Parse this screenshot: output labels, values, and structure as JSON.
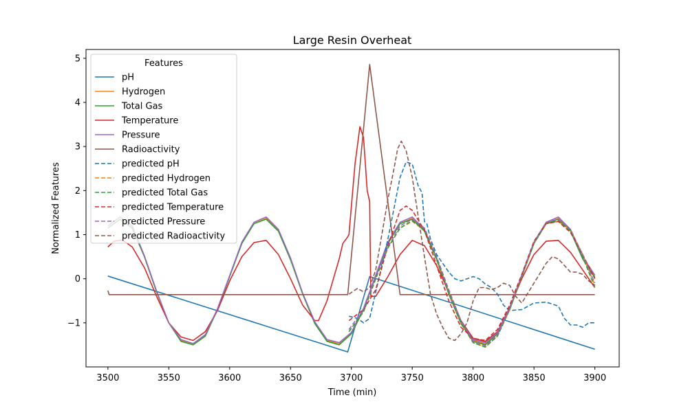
{
  "chart_data": {
    "type": "line",
    "title": "Large Resin Overheat",
    "xlabel": "Time (min)",
    "ylabel": "Normalized Features",
    "xlim": [
      3482,
      3920
    ],
    "ylim": [
      -2.0,
      5.2
    ],
    "x_ticks": [
      3500,
      3550,
      3600,
      3650,
      3700,
      3750,
      3800,
      3850,
      3900
    ],
    "y_ticks": [
      -1,
      0,
      1,
      2,
      3,
      4,
      5
    ],
    "x_tick_labels": [
      "3500",
      "3550",
      "3600",
      "3650",
      "3700",
      "3750",
      "3800",
      "3850",
      "3900"
    ],
    "y_tick_labels": [
      "−1",
      "0",
      "1",
      "2",
      "3",
      "4",
      "5"
    ],
    "grid": false,
    "legend": {
      "title": "Features",
      "position": "top-left"
    },
    "series": [
      {
        "name": "pH",
        "color": "#1f77b4",
        "dashed": false,
        "x": [
          3500,
          3697,
          3715,
          3900
        ],
        "y": [
          0.06,
          -1.66,
          0.05,
          -1.6
        ]
      },
      {
        "name": "Hydrogen",
        "color": "#ff7f0e",
        "dashed": false,
        "x": [
          3500,
          3510,
          3520,
          3530,
          3540,
          3550,
          3560,
          3570,
          3580,
          3590,
          3600,
          3610,
          3620,
          3630,
          3640,
          3650,
          3660,
          3670,
          3680,
          3690,
          3700,
          3710,
          3720,
          3730,
          3740,
          3750,
          3760,
          3770,
          3780,
          3790,
          3800,
          3810,
          3820,
          3830,
          3840,
          3850,
          3860,
          3870,
          3880,
          3890,
          3900
        ],
        "y": [
          1.15,
          1.35,
          1.15,
          0.5,
          -0.3,
          -1.0,
          -1.4,
          -1.5,
          -1.3,
          -0.7,
          0.05,
          0.8,
          1.25,
          1.37,
          1.1,
          0.45,
          -0.35,
          -1.0,
          -1.4,
          -1.48,
          -1.25,
          -0.7,
          0.05,
          0.8,
          1.25,
          1.37,
          1.1,
          0.45,
          -0.35,
          -1.0,
          -1.4,
          -1.48,
          -1.25,
          -0.7,
          0.05,
          0.8,
          1.25,
          1.37,
          1.1,
          0.5,
          0.05
        ]
      },
      {
        "name": "Total Gas",
        "color": "#2ca02c",
        "dashed": false,
        "x": [
          3500,
          3510,
          3520,
          3530,
          3540,
          3550,
          3560,
          3570,
          3580,
          3590,
          3600,
          3610,
          3620,
          3630,
          3640,
          3650,
          3660,
          3670,
          3680,
          3690,
          3700,
          3710,
          3720,
          3730,
          3740,
          3750,
          3760,
          3770,
          3780,
          3790,
          3800,
          3810,
          3820,
          3830,
          3840,
          3850,
          3860,
          3870,
          3880,
          3890,
          3900
        ],
        "y": [
          1.15,
          1.35,
          1.15,
          0.5,
          -0.3,
          -1.0,
          -1.42,
          -1.5,
          -1.3,
          -0.7,
          0.05,
          0.8,
          1.25,
          1.35,
          1.08,
          0.43,
          -0.35,
          -1.02,
          -1.42,
          -1.5,
          -1.25,
          -0.7,
          0.05,
          0.8,
          1.25,
          1.35,
          1.08,
          0.43,
          -0.35,
          -1.02,
          -1.42,
          -1.5,
          -1.25,
          -0.7,
          0.05,
          0.8,
          1.25,
          1.35,
          1.08,
          0.45,
          0.02
        ]
      },
      {
        "name": "Temperature",
        "color": "#d62728",
        "dashed": false,
        "x": [
          3500,
          3505,
          3512,
          3520,
          3530,
          3540,
          3550,
          3560,
          3570,
          3580,
          3590,
          3600,
          3610,
          3620,
          3630,
          3640,
          3650,
          3660,
          3670,
          3673,
          3680,
          3690,
          3693,
          3697,
          3698,
          3703,
          3707,
          3710,
          3713,
          3715,
          3716,
          3720,
          3730,
          3740,
          3750,
          3760,
          3770,
          3780,
          3790,
          3800,
          3810,
          3820,
          3830,
          3840,
          3850,
          3860,
          3870,
          3880,
          3890,
          3900
        ],
        "y": [
          0.72,
          0.85,
          0.88,
          0.72,
          0.25,
          -0.4,
          -1.0,
          -1.32,
          -1.4,
          -1.2,
          -0.72,
          -0.05,
          0.5,
          0.82,
          0.87,
          0.55,
          0.0,
          -0.6,
          -0.95,
          -0.95,
          -0.5,
          0.45,
          0.8,
          0.95,
          1.0,
          2.6,
          3.45,
          3.2,
          2.0,
          1.75,
          -0.4,
          -0.4,
          0.05,
          0.55,
          0.87,
          0.75,
          0.3,
          -0.3,
          -0.95,
          -1.35,
          -1.42,
          -1.2,
          -0.65,
          0.0,
          0.55,
          0.85,
          0.87,
          0.6,
          0.2,
          -0.2
        ]
      },
      {
        "name": "Pressure",
        "color": "#9467bd",
        "dashed": false,
        "x": [
          3500,
          3510,
          3520,
          3530,
          3540,
          3550,
          3560,
          3570,
          3580,
          3590,
          3600,
          3610,
          3620,
          3630,
          3640,
          3650,
          3660,
          3670,
          3680,
          3690,
          3700,
          3710,
          3720,
          3730,
          3740,
          3750,
          3760,
          3770,
          3780,
          3790,
          3800,
          3810,
          3820,
          3830,
          3840,
          3850,
          3860,
          3870,
          3880,
          3890,
          3900
        ],
        "y": [
          1.2,
          1.4,
          1.2,
          0.52,
          -0.28,
          -1.0,
          -1.38,
          -1.47,
          -1.27,
          -0.68,
          0.07,
          0.83,
          1.28,
          1.4,
          1.12,
          0.47,
          -0.33,
          -0.98,
          -1.38,
          -1.45,
          -1.22,
          -0.67,
          0.08,
          0.83,
          1.28,
          1.4,
          1.12,
          0.47,
          -0.33,
          -0.98,
          -1.38,
          -1.45,
          -1.22,
          -0.67,
          0.08,
          0.83,
          1.28,
          1.4,
          1.12,
          0.5,
          0.08
        ]
      },
      {
        "name": "Radioactivity",
        "color": "#8c564b",
        "dashed": false,
        "x": [
          3500,
          3501,
          3697,
          3715,
          3740,
          3900
        ],
        "y": [
          -0.27,
          -0.36,
          -0.36,
          4.86,
          -0.36,
          -0.36
        ]
      },
      {
        "name": "predicted pH",
        "color": "#1f77b4",
        "dashed": true,
        "x": [
          3698,
          3705,
          3710,
          3715,
          3720,
          3725,
          3730,
          3735,
          3740,
          3745,
          3750,
          3755,
          3758,
          3760,
          3762,
          3765,
          3770,
          3775,
          3780,
          3785,
          3790,
          3795,
          3800,
          3805,
          3810,
          3815,
          3820,
          3825,
          3830,
          3840,
          3850,
          3860,
          3870,
          3875,
          3880,
          3885,
          3890,
          3895,
          3900
        ],
        "y": [
          -0.85,
          -0.9,
          -1.0,
          -0.9,
          -0.3,
          0.3,
          0.9,
          1.6,
          2.3,
          2.65,
          2.6,
          2.1,
          1.95,
          1.3,
          1.25,
          0.9,
          0.55,
          0.35,
          0.15,
          0.0,
          -0.05,
          0.0,
          0.05,
          0.0,
          -0.12,
          -0.2,
          -0.35,
          -0.6,
          -0.72,
          -0.7,
          -0.55,
          -0.53,
          -0.62,
          -0.9,
          -1.05,
          -1.05,
          -1.1,
          -1.0,
          -1.0
        ]
      },
      {
        "name": "predicted Hydrogen",
        "color": "#ff7f0e",
        "dashed": true,
        "x": [
          3698,
          3710,
          3720,
          3730,
          3740,
          3750,
          3760,
          3770,
          3780,
          3790,
          3800,
          3810,
          3820,
          3830,
          3840,
          3850,
          3860,
          3870,
          3880,
          3890,
          3900
        ],
        "y": [
          -1.2,
          -0.75,
          0.0,
          0.7,
          1.15,
          1.3,
          1.1,
          0.45,
          -0.3,
          -1.0,
          -1.45,
          -1.55,
          -1.3,
          -0.7,
          0.05,
          0.8,
          1.25,
          1.3,
          1.1,
          0.55,
          -0.15
        ]
      },
      {
        "name": "predicted Total Gas",
        "color": "#2ca02c",
        "dashed": true,
        "x": [
          3698,
          3710,
          3720,
          3730,
          3740,
          3750,
          3760,
          3770,
          3780,
          3790,
          3800,
          3810,
          3820,
          3830,
          3840,
          3850,
          3860,
          3870,
          3880,
          3890,
          3900
        ],
        "y": [
          -1.2,
          -0.75,
          0.0,
          0.7,
          1.15,
          1.32,
          1.1,
          0.45,
          -0.3,
          -1.0,
          -1.45,
          -1.55,
          -1.3,
          -0.7,
          0.05,
          0.8,
          1.25,
          1.32,
          1.1,
          0.5,
          -0.2
        ]
      },
      {
        "name": "predicted Temperature",
        "color": "#d62728",
        "dashed": true,
        "x": [
          3698,
          3710,
          3720,
          3730,
          3740,
          3745,
          3750,
          3760,
          3770,
          3780,
          3790,
          3800,
          3810,
          3820,
          3830,
          3840,
          3850,
          3860,
          3870,
          3880,
          3890,
          3900
        ],
        "y": [
          -0.95,
          -0.7,
          -0.25,
          0.75,
          1.55,
          1.65,
          1.55,
          1.1,
          0.3,
          -0.5,
          -1.1,
          -1.35,
          -1.4,
          -1.15,
          -0.6,
          0.1,
          0.85,
          1.25,
          1.3,
          1.05,
          0.55,
          0.0
        ]
      },
      {
        "name": "predicted Pressure",
        "color": "#9467bd",
        "dashed": true,
        "x": [
          3698,
          3710,
          3720,
          3730,
          3740,
          3750,
          3760,
          3770,
          3780,
          3790,
          3800,
          3810,
          3820,
          3830,
          3840,
          3850,
          3860,
          3870,
          3880,
          3890,
          3900
        ],
        "y": [
          -1.15,
          -0.7,
          0.05,
          0.72,
          1.2,
          1.35,
          1.15,
          0.5,
          -0.25,
          -0.95,
          -1.42,
          -1.52,
          -1.27,
          -0.67,
          0.08,
          0.83,
          1.28,
          1.35,
          1.12,
          0.55,
          -0.1
        ]
      },
      {
        "name": "predicted Radioactivity",
        "color": "#8c564b",
        "dashed": true,
        "x": [
          3698,
          3705,
          3710,
          3715,
          3720,
          3725,
          3730,
          3735,
          3738,
          3741,
          3745,
          3750,
          3755,
          3760,
          3765,
          3770,
          3775,
          3780,
          3785,
          3790,
          3795,
          3800,
          3805,
          3810,
          3815,
          3820,
          3825,
          3830,
          3835,
          3840,
          3850,
          3860,
          3865,
          3870,
          3875,
          3880,
          3885,
          3890,
          3895,
          3900
        ],
        "y": [
          -0.35,
          -0.22,
          -0.3,
          -0.2,
          0.2,
          1.0,
          1.8,
          2.5,
          2.95,
          3.12,
          2.9,
          2.3,
          1.4,
          0.5,
          -0.35,
          -0.8,
          -1.1,
          -1.35,
          -1.4,
          -1.25,
          -1.0,
          -0.5,
          -0.2,
          -0.2,
          -0.25,
          -0.2,
          -0.1,
          -0.15,
          -0.4,
          -0.55,
          -0.1,
          0.35,
          0.5,
          0.45,
          0.3,
          0.15,
          0.15,
          0.1,
          -0.05,
          -0.15
        ]
      }
    ]
  }
}
